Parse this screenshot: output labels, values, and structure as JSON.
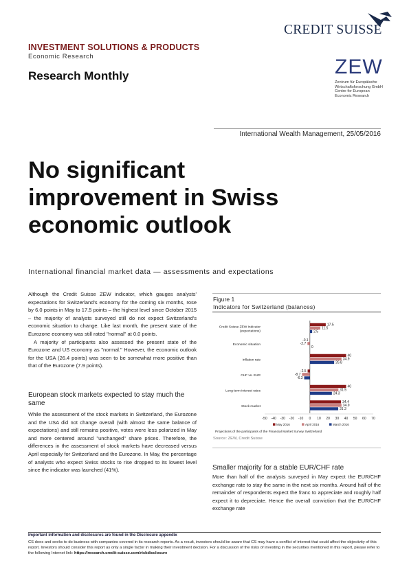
{
  "header": {
    "brand": "CREDIT SUISSE",
    "department": "INVESTMENT SOLUTIONS & PRODUCTS",
    "subdepartment": "Economic Research",
    "series": "Research Monthly",
    "zew_logo": "ZEW",
    "zew_line1": "Zentrum für Europäische",
    "zew_line2": "Wirtschaftsforschung GmbH",
    "zew_line3": "Centre for European",
    "zew_line4": "Economic Research"
  },
  "meta": {
    "dateline": "International Wealth Management, 25/05/2016"
  },
  "article": {
    "headline_line1": "No significant",
    "headline_line2": "improvement in Swiss",
    "headline_line3": "economic outlook",
    "subtitle": "International financial market data — assessments and expectations",
    "para1": "Although the Credit Suisse ZEW indicator, which gauges analysts' expectations for Switzerland's economy for the coming six months, rose by 6.0 points in May to 17.5 points – the highest level since October 2015 – the majority of analysts surveyed still do not expect Switzerland's economic situation to change. Like last month, the present state of the Eurozone economy was still rated \"normal\" at 0.0 points.",
    "para2": "A majority of participants also assessed the present state of the Eurozone and US economy as \"normal.\" However, the economic outlook for the USA (26.4 points) was seen to be somewhat more positive than that of the Eurozone (7.9 points).",
    "heading2": "European stock markets expected to stay much the same",
    "para3": "While the assessment of the stock markets in Switzerland, the Eurozone and the USA did not change overall (with almost the same balance of expectations) and still remains positive, votes were less polarized in May and more centered around \"unchanged\" share prices. Therefore, the differences in the assessment of stock markets have decreased versus April especially for Switzerland and the Eurozone. In May, the percentage of analysts who expect Swiss stocks to rise dropped to its lowest level since the indicator was launched (41%).",
    "heading3": "Smaller majority for a stable EUR/CHF rate",
    "para4": "More than half of the analysts surveyed in May expect the EUR/CHF exchange rate to stay the same in the next six months. Around half of the remainder of respondents expect the franc to appreciate and roughly half expect it to depreciate. Hence the overall conviction that the EUR/CHF exchange rate"
  },
  "figure": {
    "label": "Figure 1",
    "title": "Indicators for Switzerland (balances)",
    "source": "Source: ZEW, Credit Suisse"
  },
  "chart_data": {
    "type": "bar",
    "orientation": "horizontal",
    "title": "Indicators for Switzerland (balances)",
    "categories": [
      "Credit Suisse ZEW Indicator (expectations)",
      "Economic situation",
      "Inflation rate",
      "CHF vs. EUR",
      "Long-term interest rates",
      "Stock market"
    ],
    "category_lines": [
      [
        "Credit Suisse ZEW Indicator",
        "(expectations)"
      ],
      [
        "Economic situation"
      ],
      [
        "Inflation rate"
      ],
      [
        "CHF vs. EUR"
      ],
      [
        "Long-term interest rates"
      ],
      [
        "Stock market"
      ]
    ],
    "series": [
      {
        "name": "May 2016",
        "color": "#8b1a1a",
        "values": [
          17.5,
          -0.1,
          40,
          -2.5,
          40,
          34.4
        ]
      },
      {
        "name": "April 2016",
        "color": "#c77d7d",
        "values": [
          11.5,
          -2.7,
          34.9,
          -8.7,
          31.5,
          34.9
        ]
      },
      {
        "name": "March 2016",
        "color": "#1f3c88",
        "values": [
          2.5,
          0,
          26.8,
          -6.3,
          24.3,
          31.3
        ]
      }
    ],
    "value_labels": [
      [
        "17.5",
        "11.5",
        "2.5"
      ],
      [
        "-0.1",
        "-2.7",
        "0"
      ],
      [
        "40",
        "34.9",
        "26.8"
      ],
      [
        "-2.5",
        "-8.7",
        "-6.3"
      ],
      [
        "40",
        "31.5",
        "24.3"
      ],
      [
        "34.4",
        "34.9",
        "31.3"
      ]
    ],
    "xlim": [
      -50,
      70
    ],
    "xticks": [
      -50,
      -40,
      -30,
      -20,
      -10,
      0,
      10,
      20,
      30,
      40,
      50,
      60,
      70
    ],
    "legend_position": "bottom",
    "annotation": "Projections of the participants of the Financial Market Survey Switzerland"
  },
  "footer": {
    "disclosure_heading": "Important information and disclosures are found in the Disclosure appendix",
    "disclosure_text": "CS does and seeks to do business with companies covered in its research reports. As a result, investors should be aware that CS may have a conflict of interest that could affect the objectivity of this report. Investors should consider this report as only a single factor in making their investment decision. For a discussion of the risks of investing in the securities mentioned in this report, please refer to the following Internet link:",
    "disclosure_link": "https://research.credit-suisse.com/riskdisclosure"
  }
}
